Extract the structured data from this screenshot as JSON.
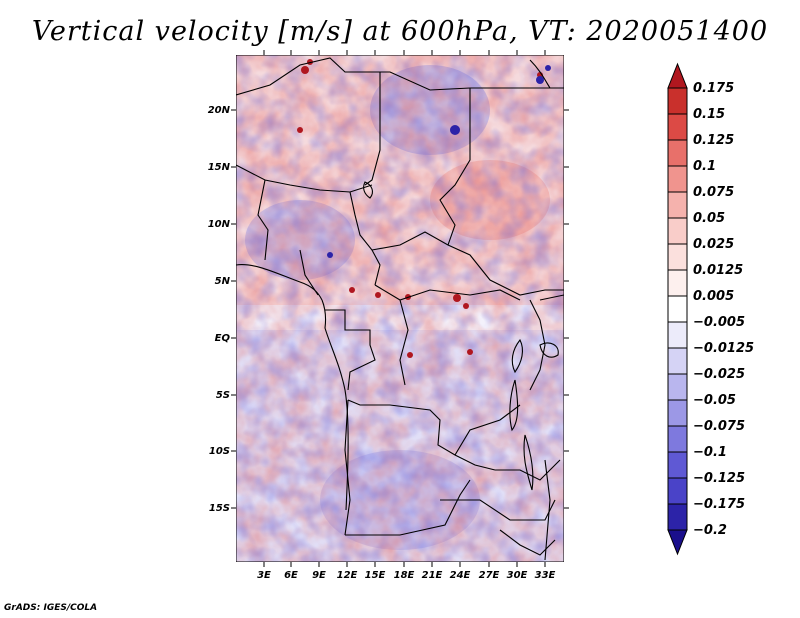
{
  "title": "Vertical velocity [m/s] at 600hPa, VT: 2020051400",
  "credit": "GrADS: IGES/COLA",
  "map": {
    "lon_labels": [
      "3E",
      "6E",
      "9E",
      "12E",
      "15E",
      "18E",
      "21E",
      "24E",
      "27E",
      "30E",
      "33E"
    ],
    "lat_labels": [
      "20N",
      "15N",
      "10N",
      "5N",
      "EQ",
      "5S",
      "10S",
      "15S"
    ]
  },
  "colorbar": {
    "labels": [
      "0.175",
      "0.15",
      "0.125",
      "0.1",
      "0.075",
      "0.05",
      "0.025",
      "0.0125",
      "0.005",
      "−0.005",
      "−0.0125",
      "−0.025",
      "−0.05",
      "−0.075",
      "−0.1",
      "−0.125",
      "−0.175",
      "−0.2"
    ],
    "colors": [
      "#b0171f",
      "#c9302c",
      "#dc4a45",
      "#e8706a",
      "#f0948e",
      "#f5b2ad",
      "#f9cdc9",
      "#fbe0dd",
      "#fdf0ee",
      "#ffffff",
      "#ecebfa",
      "#d5d3f5",
      "#b9b6ee",
      "#9c98e6",
      "#7e79de",
      "#5f59d4",
      "#4a43c8",
      "#2c23a8",
      "#1a0f8c"
    ],
    "top_arrow_color": "#b0171f",
    "bottom_arrow_color": "#1a0f8c"
  }
}
